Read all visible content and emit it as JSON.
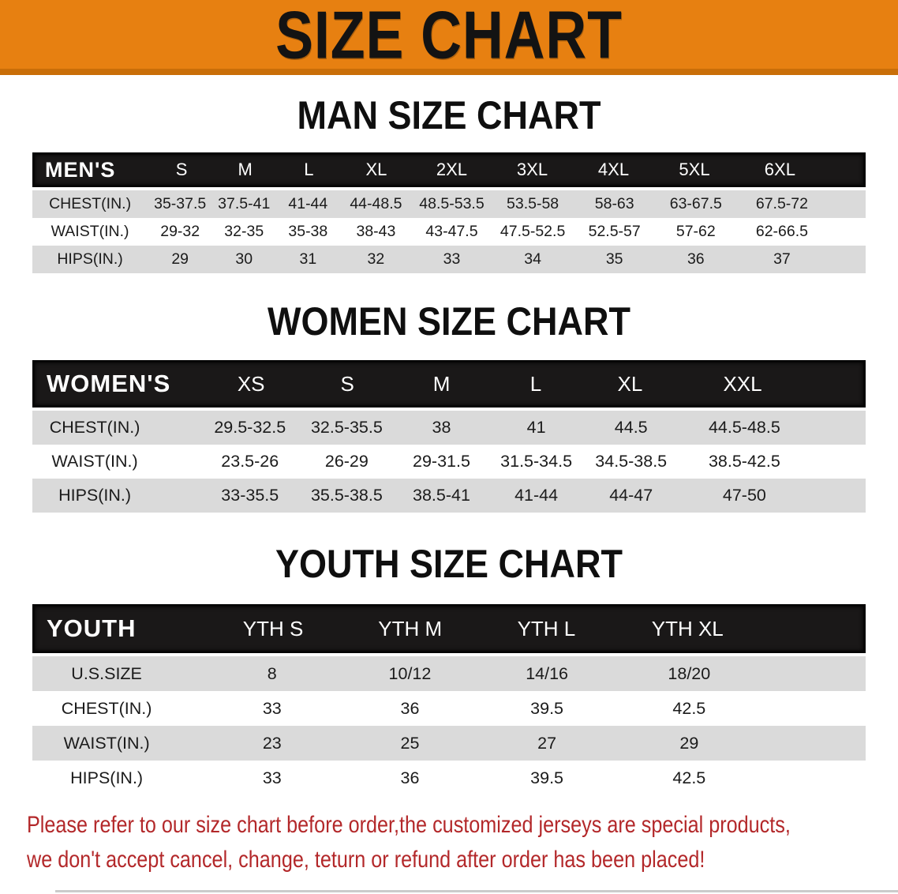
{
  "banner": {
    "title": "SIZE CHART",
    "bg_color": "#E78011",
    "text_color": "#131313"
  },
  "sections": [
    {
      "heading": "MAN SIZE CHART",
      "table": {
        "label": "MEN'S",
        "sizes": [
          "S",
          "M",
          "L",
          "XL",
          "2XL",
          "3XL",
          "4XL",
          "5XL",
          "6XL"
        ],
        "rows": [
          {
            "label": "CHEST(IN.)",
            "values": [
              "35-37.5",
              "37.5-41",
              "41-44",
              "44-48.5",
              "48.5-53.5",
              "53.5-58",
              "58-63",
              "63-67.5",
              "67.5-72"
            ]
          },
          {
            "label": "WAIST(IN.)",
            "values": [
              "29-32",
              "32-35",
              "35-38",
              "38-43",
              "43-47.5",
              "47.5-52.5",
              "52.5-57",
              "57-62",
              "62-66.5"
            ]
          },
          {
            "label": "HIPS(IN.)",
            "values": [
              "29",
              "30",
              "31",
              "32",
              "33",
              "34",
              "35",
              "36",
              "37"
            ]
          }
        ]
      }
    },
    {
      "heading": "WOMEN SIZE CHART",
      "table": {
        "label": "WOMEN'S",
        "sizes": [
          "XS",
          "S",
          "M",
          "L",
          "XL",
          "XXL"
        ],
        "rows": [
          {
            "label": "CHEST(IN.)",
            "values": [
              "29.5-32.5",
              "32.5-35.5",
              "38",
              "41",
              "44.5",
              "44.5-48.5"
            ]
          },
          {
            "label": "WAIST(IN.)",
            "values": [
              "23.5-26",
              "26-29",
              "29-31.5",
              "31.5-34.5",
              "34.5-38.5",
              "38.5-42.5"
            ]
          },
          {
            "label": "HIPS(IN.)",
            "values": [
              "33-35.5",
              "35.5-38.5",
              "38.5-41",
              "41-44",
              "44-47",
              "47-50"
            ]
          }
        ]
      }
    },
    {
      "heading": "YOUTH SIZE CHART",
      "table": {
        "label": "YOUTH",
        "sizes": [
          "YTH S",
          "YTH M",
          "YTH L",
          "YTH XL"
        ],
        "rows": [
          {
            "label": "U.S.SIZE",
            "values": [
              "8",
              "10/12",
              "14/16",
              "18/20"
            ]
          },
          {
            "label": "CHEST(IN.)",
            "values": [
              "33",
              "36",
              "39.5",
              "42.5"
            ]
          },
          {
            "label": "WAIST(IN.)",
            "values": [
              "23",
              "25",
              "27",
              "29"
            ]
          },
          {
            "label": "HIPS(IN.)",
            "values": [
              "33",
              "36",
              "39.5",
              "42.5"
            ]
          }
        ]
      }
    }
  ],
  "disclaimer": {
    "line1": "Please refer to our size chart before order,the customized jerseys are special products,",
    "line2": "we don't accept cancel, change, teturn or refund after order has been placed!",
    "text_color": "#B3282A"
  },
  "colors": {
    "banner_orange": "#E78011",
    "banner_edge": "#C96E08",
    "header_black": "#1a1818",
    "stripe_gray": "#DADADA",
    "value_text": "#1b1b1b"
  }
}
